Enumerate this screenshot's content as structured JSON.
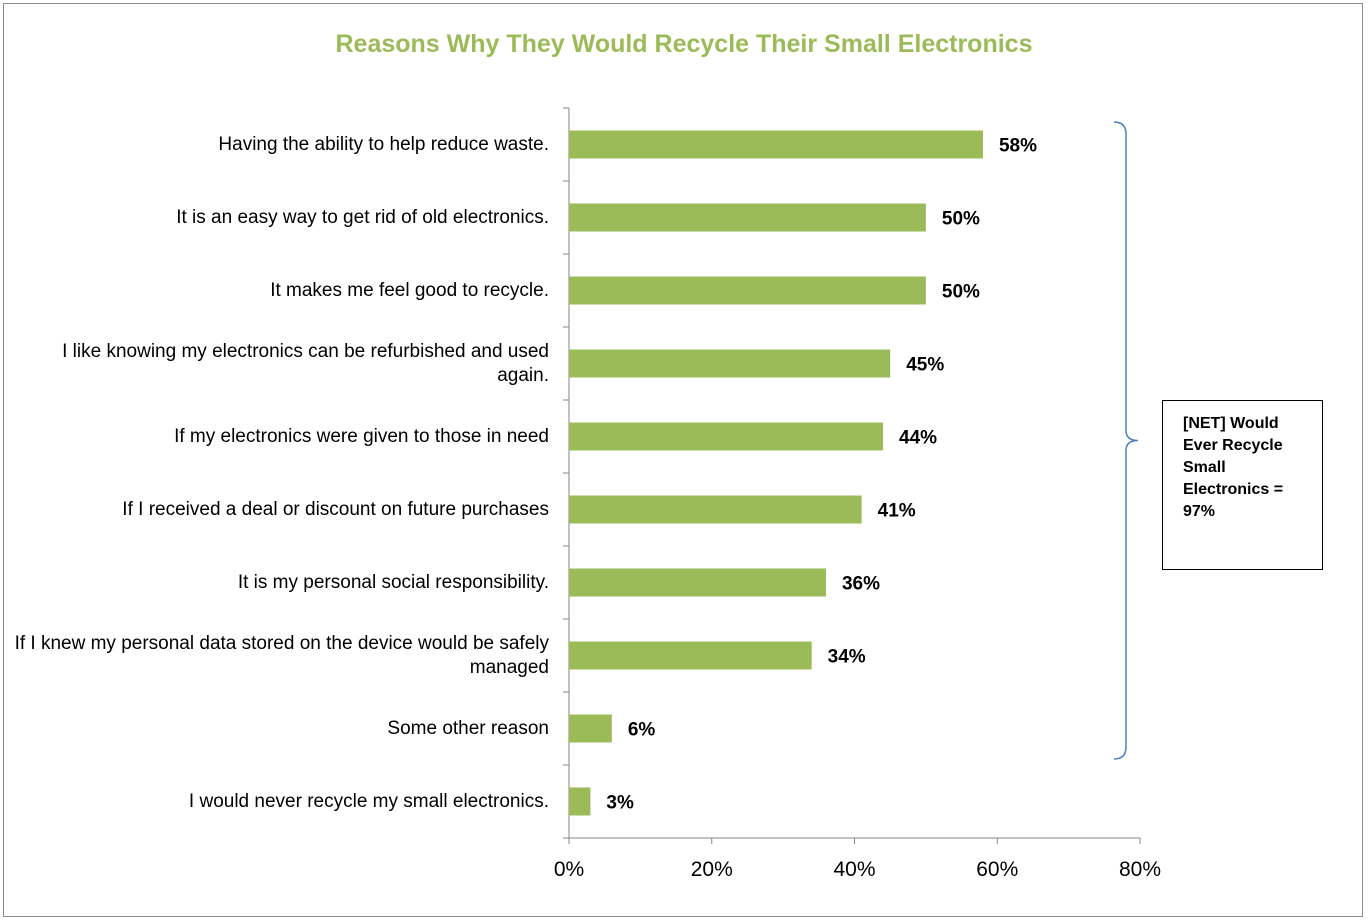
{
  "chart_data": {
    "type": "bar",
    "orientation": "horizontal",
    "title": "Reasons Why They Would Recycle Their Small Electronics",
    "categories": [
      "Having the ability to help reduce waste.",
      "It is an easy way to get rid of old electronics.",
      "It makes me feel good to recycle.",
      "I like knowing my electronics can be refurbished and used again.",
      "If my electronics were given to those in need",
      "If I received a deal or discount on future purchases",
      "It is my personal social responsibility.",
      "If I knew my personal data stored on the device would be safely managed",
      "Some other reason",
      "I would never recycle my small electronics."
    ],
    "values": [
      58,
      50,
      50,
      45,
      44,
      41,
      36,
      34,
      6,
      3
    ],
    "data_labels": [
      "58%",
      "50%",
      "50%",
      "45%",
      "44%",
      "41%",
      "36%",
      "34%",
      "6%",
      "3%"
    ],
    "xlim": [
      0,
      80
    ],
    "x_ticks": [
      0,
      20,
      40,
      60,
      80
    ],
    "x_tick_labels": [
      "0%",
      "20%",
      "40%",
      "60%",
      "80%"
    ],
    "grid": false,
    "legend": "none",
    "annotation": {
      "text": "[NET]  Would\nEver Recycle\nSmall\nElectronics =\n97%",
      "bracket_covers_first_n_categories": 9
    },
    "colors": {
      "bar": "#9BBB59",
      "title": "#9BBB59",
      "bracket": "#4F81BD",
      "axis": "#868686"
    }
  }
}
